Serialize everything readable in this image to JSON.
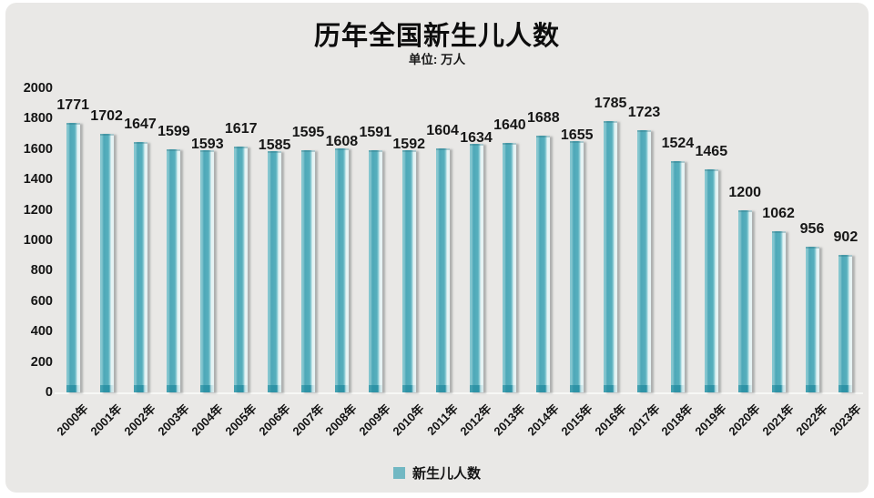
{
  "colors": {
    "background": "#e9e8e6",
    "bar": "#57afbd",
    "bar_dark": "#4ea8b8",
    "bar_edge_light": "#85c6cf",
    "bar_highlight": "#e6f3f4",
    "bar_base": "#2e93a6",
    "legend_swatch": "#72b8c3",
    "text": "#141414"
  },
  "chart_data": {
    "type": "bar",
    "title": "历年全国新生儿人数",
    "subtitle": "单位: 万人",
    "categories": [
      "2000年",
      "2001年",
      "2002年",
      "2003年",
      "2004年",
      "2005年",
      "2006年",
      "2007年",
      "2008年",
      "2009年",
      "2010年",
      "2011年",
      "2012年",
      "2013年",
      "2014年",
      "2015年",
      "2016年",
      "2017年",
      "2018年",
      "2019年",
      "2020年",
      "2021年",
      "2022年",
      "2023年"
    ],
    "values": [
      1771,
      1702,
      1647,
      1599,
      1593,
      1617,
      1585,
      1595,
      1608,
      1591,
      1592,
      1604,
      1634,
      1640,
      1688,
      1655,
      1785,
      1723,
      1524,
      1465,
      1200,
      1062,
      956,
      902
    ],
    "legend": [
      "新生儿人数"
    ],
    "legend_position": "bottom",
    "xlabel": "",
    "ylabel": "",
    "ylim": [
      0,
      2000
    ],
    "ytick_step": 200,
    "grid": false,
    "data_labels": true
  }
}
